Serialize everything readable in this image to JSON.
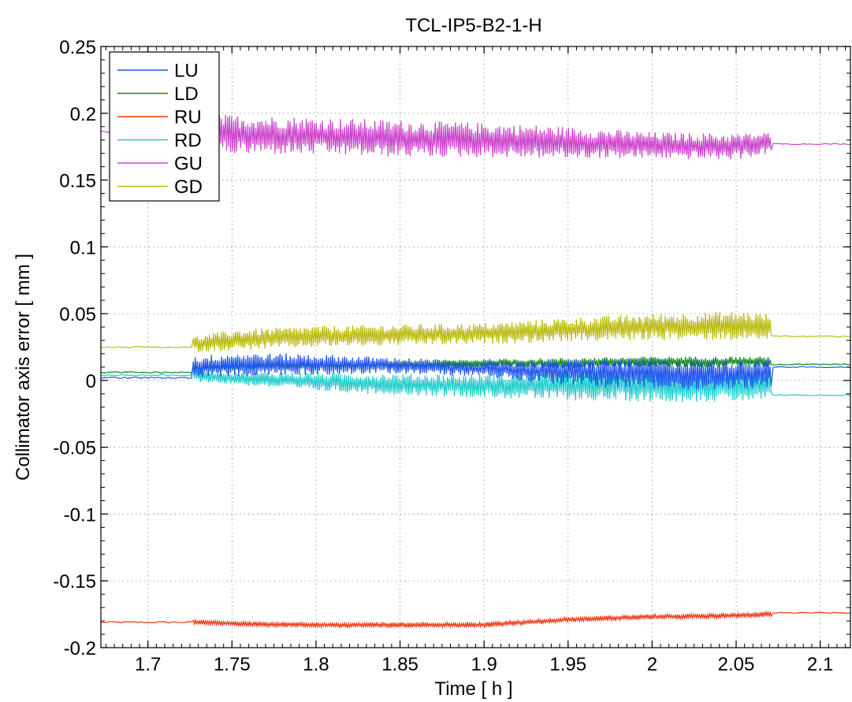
{
  "chart_data": {
    "type": "line",
    "title": "TCL-IP5-B2-1-H",
    "xlabel": "Time [ h ]",
    "ylabel": "Collimator axis error [ mm ]",
    "xlim": [
      1.672,
      2.118
    ],
    "ylim": [
      -0.2,
      0.25
    ],
    "xticks": [
      1.7,
      1.75,
      1.8,
      1.85,
      1.9,
      1.95,
      2,
      2.05,
      2.1
    ],
    "xtick_labels": [
      "1.7",
      "1.75",
      "1.8",
      "1.85",
      "1.9",
      "1.95",
      "2",
      "2.05",
      "2.1"
    ],
    "yticks": [
      0.25,
      0.2,
      0.15,
      0.1,
      0.05,
      0,
      -0.05,
      -0.1,
      -0.15,
      -0.2
    ],
    "ytick_labels": [
      "0.25",
      "0.2",
      "0.15",
      "0.1",
      "0.05",
      "0",
      "-0.05",
      "-0.1",
      "-0.15",
      "-0.2"
    ],
    "grid": true,
    "legend_position": "top-left",
    "active_interval": [
      1.727,
      2.071
    ],
    "series": [
      {
        "name": "LU",
        "color": "#2255ee",
        "baseline_before": 0.002,
        "baseline_after": 0.01,
        "x": [
          1.727,
          1.75,
          1.8,
          1.85,
          1.9,
          1.95,
          2.0,
          2.05,
          2.071
        ],
        "center": [
          0.01,
          0.012,
          0.012,
          0.011,
          0.009,
          0.006,
          0.005,
          0.005,
          0.006
        ],
        "amplitude": [
          0.008,
          0.009,
          0.008,
          0.006,
          0.006,
          0.01,
          0.012,
          0.012,
          0.011
        ]
      },
      {
        "name": "LD",
        "color": "#118822",
        "baseline_before": 0.006,
        "baseline_after": 0.012,
        "x": [
          1.727,
          1.75,
          1.8,
          1.85,
          1.9,
          1.95,
          2.0,
          2.05,
          2.071
        ],
        "center": [
          0.009,
          0.01,
          0.011,
          0.012,
          0.013,
          0.013,
          0.014,
          0.014,
          0.014
        ],
        "amplitude": [
          0.002,
          0.003,
          0.003,
          0.003,
          0.003,
          0.004,
          0.004,
          0.004,
          0.004
        ]
      },
      {
        "name": "RU",
        "color": "#ee3311",
        "baseline_before": -0.181,
        "baseline_after": -0.174,
        "x": [
          1.727,
          1.75,
          1.8,
          1.85,
          1.9,
          1.95,
          2.0,
          2.05,
          2.071
        ],
        "center": [
          -0.181,
          -0.182,
          -0.183,
          -0.183,
          -0.183,
          -0.179,
          -0.177,
          -0.176,
          -0.175
        ],
        "amplitude": [
          0.002,
          0.002,
          0.002,
          0.002,
          0.002,
          0.002,
          0.002,
          0.002,
          0.002
        ]
      },
      {
        "name": "RD",
        "color": "#22cccc",
        "baseline_before": 0.004,
        "baseline_after": -0.011,
        "x": [
          1.727,
          1.75,
          1.8,
          1.85,
          1.9,
          1.95,
          2.0,
          2.05,
          2.071
        ],
        "center": [
          0.004,
          0.002,
          -0.001,
          -0.003,
          -0.004,
          -0.004,
          -0.004,
          -0.004,
          -0.004
        ],
        "amplitude": [
          0.005,
          0.005,
          0.007,
          0.008,
          0.009,
          0.011,
          0.012,
          0.012,
          0.011
        ]
      },
      {
        "name": "GU",
        "color": "#cc44cc",
        "baseline_before": 0.186,
        "baseline_after": 0.177,
        "x": [
          1.727,
          1.75,
          1.8,
          1.85,
          1.9,
          1.95,
          2.0,
          2.05,
          2.071
        ],
        "center": [
          0.186,
          0.184,
          0.183,
          0.181,
          0.18,
          0.178,
          0.176,
          0.175,
          0.178
        ],
        "amplitude": [
          0.014,
          0.015,
          0.014,
          0.014,
          0.013,
          0.012,
          0.01,
          0.01,
          0.008
        ]
      },
      {
        "name": "GD",
        "color": "#bbbb11",
        "baseline_before": 0.025,
        "baseline_after": 0.033,
        "x": [
          1.727,
          1.75,
          1.8,
          1.85,
          1.9,
          1.95,
          2.0,
          2.05,
          2.071
        ],
        "center": [
          0.027,
          0.03,
          0.033,
          0.034,
          0.035,
          0.038,
          0.04,
          0.041,
          0.04
        ],
        "amplitude": [
          0.006,
          0.008,
          0.008,
          0.008,
          0.008,
          0.009,
          0.01,
          0.011,
          0.01
        ]
      }
    ]
  }
}
